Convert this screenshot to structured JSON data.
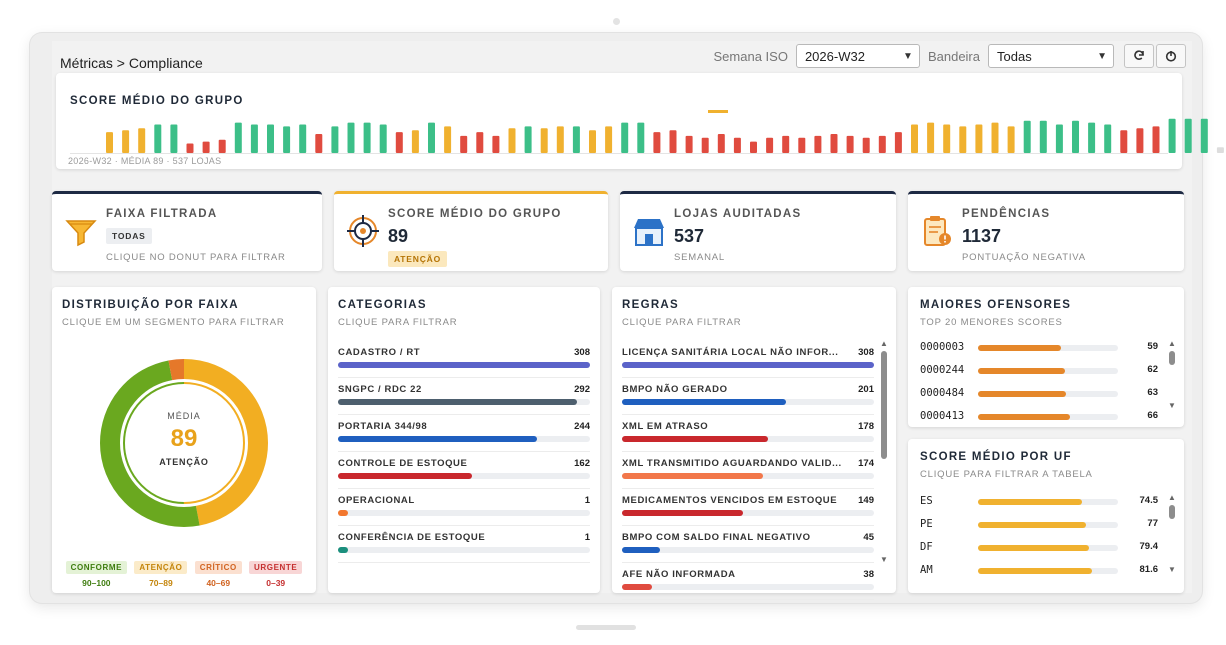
{
  "header": {
    "breadcrumb": "Métricas > Compliance",
    "week_label": "Semana ISO",
    "week_value": "2026-W32",
    "flag_label": "Bandeira",
    "flag_value": "Todas",
    "refresh_icon": "refresh-icon",
    "power_icon": "power-icon"
  },
  "hero": {
    "title": "SCORE MÉDIO DO GRUPO",
    "caption": "2026-W32 · MÉDIA 89 · 537 LOJAS",
    "bars": [
      {
        "v": 0.55,
        "c": "#f0b12f"
      },
      {
        "v": 0.6,
        "c": "#f0b12f"
      },
      {
        "v": 0.65,
        "c": "#f0b12f"
      },
      {
        "v": 0.75,
        "c": "#3cbf88"
      },
      {
        "v": 0.75,
        "c": "#3cbf88"
      },
      {
        "v": 0.25,
        "c": "#e04b3f"
      },
      {
        "v": 0.3,
        "c": "#e04b3f"
      },
      {
        "v": 0.35,
        "c": "#e04b3f"
      },
      {
        "v": 0.8,
        "c": "#3cbf88"
      },
      {
        "v": 0.75,
        "c": "#3cbf88"
      },
      {
        "v": 0.75,
        "c": "#3cbf88"
      },
      {
        "v": 0.7,
        "c": "#3cbf88"
      },
      {
        "v": 0.75,
        "c": "#3cbf88"
      },
      {
        "v": 0.5,
        "c": "#e04b3f"
      },
      {
        "v": 0.7,
        "c": "#3cbf88"
      },
      {
        "v": 0.8,
        "c": "#3cbf88"
      },
      {
        "v": 0.8,
        "c": "#3cbf88"
      },
      {
        "v": 0.75,
        "c": "#3cbf88"
      },
      {
        "v": 0.55,
        "c": "#e04b3f"
      },
      {
        "v": 0.6,
        "c": "#f0b12f"
      },
      {
        "v": 0.8,
        "c": "#3cbf88"
      },
      {
        "v": 0.7,
        "c": "#f0b12f"
      },
      {
        "v": 0.45,
        "c": "#e04b3f"
      },
      {
        "v": 0.55,
        "c": "#e04b3f"
      },
      {
        "v": 0.45,
        "c": "#e04b3f"
      },
      {
        "v": 0.65,
        "c": "#f0b12f"
      },
      {
        "v": 0.7,
        "c": "#3cbf88"
      },
      {
        "v": 0.65,
        "c": "#f0b12f"
      },
      {
        "v": 0.7,
        "c": "#f0b12f"
      },
      {
        "v": 0.7,
        "c": "#3cbf88"
      },
      {
        "v": 0.6,
        "c": "#f0b12f"
      },
      {
        "v": 0.7,
        "c": "#f0b12f"
      },
      {
        "v": 0.8,
        "c": "#3cbf88"
      },
      {
        "v": 0.8,
        "c": "#3cbf88"
      },
      {
        "v": 0.55,
        "c": "#e04b3f"
      },
      {
        "v": 0.6,
        "c": "#e04b3f"
      },
      {
        "v": 0.45,
        "c": "#e04b3f"
      },
      {
        "v": 0.4,
        "c": "#e04b3f"
      },
      {
        "v": 0.5,
        "c": "#e04b3f"
      },
      {
        "v": 0.4,
        "c": "#e04b3f"
      },
      {
        "v": 0.3,
        "c": "#e04b3f"
      },
      {
        "v": 0.4,
        "c": "#e04b3f"
      },
      {
        "v": 0.45,
        "c": "#e04b3f"
      },
      {
        "v": 0.4,
        "c": "#e04b3f"
      },
      {
        "v": 0.45,
        "c": "#e04b3f"
      },
      {
        "v": 0.5,
        "c": "#e04b3f"
      },
      {
        "v": 0.45,
        "c": "#e04b3f"
      },
      {
        "v": 0.4,
        "c": "#e04b3f"
      },
      {
        "v": 0.45,
        "c": "#e04b3f"
      },
      {
        "v": 0.55,
        "c": "#e04b3f"
      },
      {
        "v": 0.75,
        "c": "#f0b12f"
      },
      {
        "v": 0.8,
        "c": "#f0b12f"
      },
      {
        "v": 0.75,
        "c": "#f0b12f"
      },
      {
        "v": 0.7,
        "c": "#f0b12f"
      },
      {
        "v": 0.75,
        "c": "#f0b12f"
      },
      {
        "v": 0.8,
        "c": "#f0b12f"
      },
      {
        "v": 0.7,
        "c": "#f0b12f"
      },
      {
        "v": 0.85,
        "c": "#3cbf88"
      },
      {
        "v": 0.85,
        "c": "#3cbf88"
      },
      {
        "v": 0.75,
        "c": "#3cbf88"
      },
      {
        "v": 0.85,
        "c": "#3cbf88"
      },
      {
        "v": 0.8,
        "c": "#3cbf88"
      },
      {
        "v": 0.75,
        "c": "#3cbf88"
      },
      {
        "v": 0.6,
        "c": "#e04b3f"
      },
      {
        "v": 0.65,
        "c": "#e04b3f"
      },
      {
        "v": 0.7,
        "c": "#e04b3f"
      },
      {
        "v": 0.9,
        "c": "#3cbf88"
      },
      {
        "v": 0.9,
        "c": "#3cbf88"
      },
      {
        "v": 0.9,
        "c": "#3cbf88"
      },
      {
        "v": 0.15,
        "c": "#dddddd"
      }
    ]
  },
  "kpis": [
    {
      "title": "FAIXA FILTRADA",
      "tag": "TODAS",
      "sub": "CLIQUE NO DONUT PARA FILTRAR",
      "icon": "funnel-icon"
    },
    {
      "title": "SCORE MÉDIO DO GRUPO",
      "value": "89",
      "tag": "ATENÇÃO",
      "icon": "target-icon"
    },
    {
      "title": "LOJAS AUDITADAS",
      "value": "537",
      "sub": "SEMANAL",
      "icon": "store-icon"
    },
    {
      "title": "PENDÊNCIAS",
      "value": "1137",
      "sub": "PONTUAÇÃO NEGATIVA",
      "icon": "clipboard-alert-icon"
    }
  ],
  "donut": {
    "title": "DISTRIBUIÇÃO POR FAIXA",
    "sub": "CLIQUE EM UM SEGMENTO PARA FILTRAR",
    "center_label": "MÉDIA",
    "center_value": "89",
    "center_status": "ATENÇÃO",
    "segments": [
      {
        "name": "CONFORME",
        "share": 0.5,
        "color": "#6aa81f"
      },
      {
        "name": "ATENÇÃO",
        "share": 0.47,
        "color": "#f2ae22"
      },
      {
        "name": "CRÍTICO",
        "share": 0.03,
        "color": "#e5782a"
      }
    ],
    "legend": [
      {
        "label": "CONFORME",
        "range": "90–100",
        "bg": "#e4f2d6",
        "fg": "#3f7d10"
      },
      {
        "label": "ATENÇÃO",
        "range": "70–89",
        "bg": "#fbebc9",
        "fg": "#c4850b"
      },
      {
        "label": "CRÍTICO",
        "range": "40–69",
        "bg": "#fbe0d0",
        "fg": "#d16320"
      },
      {
        "label": "URGENTE",
        "range": "0–39",
        "bg": "#f8d6d6",
        "fg": "#c53030"
      }
    ]
  },
  "categorias": {
    "title": "CATEGORIAS",
    "sub": "CLIQUE PARA FILTRAR",
    "items": [
      {
        "label": "CADASTRO / RT",
        "value": "308",
        "frac": 1.0,
        "color": "#5b63c9"
      },
      {
        "label": "SNGPC / RDC 22",
        "value": "292",
        "frac": 0.95,
        "color": "#4d5f6e"
      },
      {
        "label": "PORTARIA 344/98",
        "value": "244",
        "frac": 0.79,
        "color": "#1f5fbf"
      },
      {
        "label": "CONTROLE DE ESTOQUE",
        "value": "162",
        "frac": 0.53,
        "color": "#c9282d"
      },
      {
        "label": "OPERACIONAL",
        "value": "1",
        "frac": 0.04,
        "color": "#f2772e"
      },
      {
        "label": "CONFERÊNCIA DE ESTOQUE",
        "value": "1",
        "frac": 0.04,
        "color": "#1b8f7d"
      }
    ]
  },
  "regras": {
    "title": "REGRAS",
    "sub": "CLIQUE PARA FILTRAR",
    "items": [
      {
        "label": "LICENÇA SANITÁRIA LOCAL NÃO INFOR...",
        "value": "308",
        "frac": 1.0,
        "color": "#5b63c9"
      },
      {
        "label": "BMPO NÃO GERADO",
        "value": "201",
        "frac": 0.65,
        "color": "#1f5fbf"
      },
      {
        "label": "XML EM ATRASO",
        "value": "178",
        "frac": 0.58,
        "color": "#c9282d"
      },
      {
        "label": "XML TRANSMITIDO AGUARDANDO VALID...",
        "value": "174",
        "frac": 0.56,
        "color": "#f2774a"
      },
      {
        "label": "MEDICAMENTOS VENCIDOS EM ESTOQUE",
        "value": "149",
        "frac": 0.48,
        "color": "#c9282d"
      },
      {
        "label": "BMPO COM SALDO FINAL NEGATIVO",
        "value": "45",
        "frac": 0.15,
        "color": "#1f5fbf"
      },
      {
        "label": "AFE NÃO INFORMADA",
        "value": "38",
        "frac": 0.12,
        "color": "#e04b3f"
      }
    ]
  },
  "ofensores": {
    "title": "MAIORES OFENSORES",
    "sub": "TOP 20 MENORES SCORES",
    "items": [
      {
        "code": "0000003",
        "value": "59",
        "frac": 0.59,
        "color": "#e5872a"
      },
      {
        "code": "0000244",
        "value": "62",
        "frac": 0.62,
        "color": "#e5872a"
      },
      {
        "code": "0000484",
        "value": "63",
        "frac": 0.63,
        "color": "#e5872a"
      },
      {
        "code": "0000413",
        "value": "66",
        "frac": 0.66,
        "color": "#e5872a"
      }
    ]
  },
  "uf": {
    "title": "SCORE MÉDIO POR UF",
    "sub": "CLIQUE PARA FILTRAR A TABELA",
    "items": [
      {
        "code": "ES",
        "value": "74.5",
        "frac": 0.745,
        "color": "#f0b12f"
      },
      {
        "code": "PE",
        "value": "77",
        "frac": 0.77,
        "color": "#f0b12f"
      },
      {
        "code": "DF",
        "value": "79.4",
        "frac": 0.794,
        "color": "#f0b12f"
      },
      {
        "code": "AM",
        "value": "81.6",
        "frac": 0.816,
        "color": "#f0b12f"
      }
    ]
  }
}
